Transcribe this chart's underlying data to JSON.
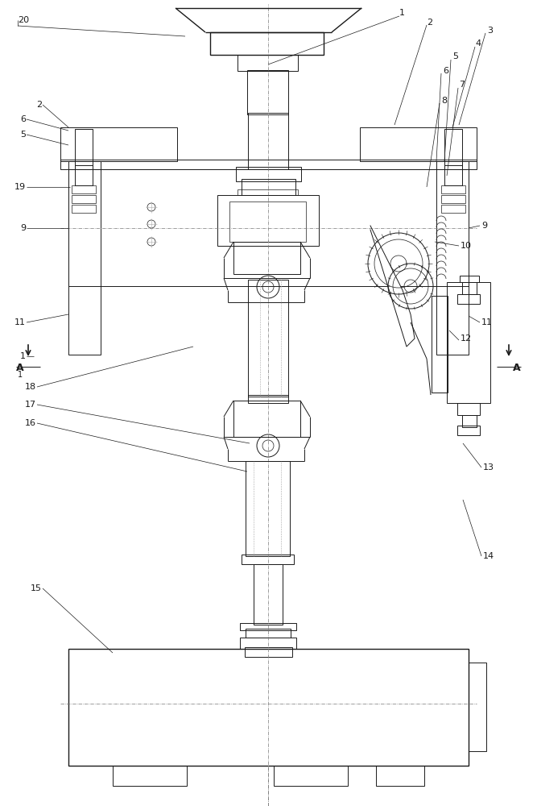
{
  "bg_color": "#ffffff",
  "lc": "#1a1a1a",
  "lw": 0.7,
  "tlw": 0.5,
  "thk": 1.0,
  "figsize": [
    6.67,
    10.0
  ],
  "dpi": 100,
  "font_size": 8.0
}
